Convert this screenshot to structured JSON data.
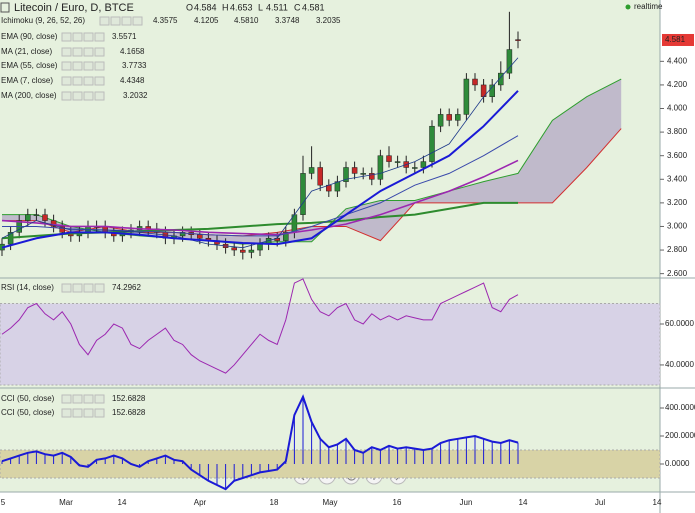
{
  "header": {
    "title": "Litecoin / Euro, D, BTCE",
    "realtime": "realtime",
    "ohlc": [
      {
        "label": "O",
        "value": 4.584
      },
      {
        "label": "H",
        "value": 4.653
      },
      {
        "label": "L",
        "value": 4.511
      },
      {
        "label": "C",
        "value": 4.581
      }
    ]
  },
  "legend": [
    {
      "name": "Ichimoku (9, 26, 52, 26)",
      "values": [
        "4.3575",
        "4.1205",
        "4.5810",
        "3.3748",
        "3.2035"
      ],
      "colors": [
        "#1e88e5",
        "#d32f2f",
        "#2e9e2e",
        "#1b5e20",
        "#c62828"
      ]
    },
    {
      "name": "EMA (90, close)",
      "values": [
        "3.5571"
      ],
      "colors": [
        "#9c27b0"
      ]
    },
    {
      "name": "MA (21, close)",
      "values": [
        "4.1658"
      ],
      "colors": [
        "#1a1ad6"
      ]
    },
    {
      "name": "EMA (55, close)",
      "values": [
        "3.7733"
      ],
      "colors": [
        "#3949ab"
      ]
    },
    {
      "name": "EMA (7, close)",
      "values": [
        "4.4348"
      ],
      "colors": [
        "#1e3a8a"
      ]
    },
    {
      "name": "MA (200, close)",
      "values": [
        "3.2032"
      ],
      "colors": [
        "#2e8b2e"
      ]
    }
  ],
  "price": {
    "ylim": [
      2.58,
      4.92
    ],
    "yticks": [
      {
        "value": 2.6,
        "label": "2.600"
      },
      {
        "value": 2.8,
        "label": "2.800"
      },
      {
        "value": 3.0,
        "label": "3.000"
      },
      {
        "value": 3.2,
        "label": "3.200"
      },
      {
        "value": 3.4,
        "label": "3.400"
      },
      {
        "value": 3.6,
        "label": "3.600"
      },
      {
        "value": 3.8,
        "label": "3.800"
      },
      {
        "value": 4.0,
        "label": "4.000"
      },
      {
        "value": 4.2,
        "label": "4.200"
      },
      {
        "value": 4.4,
        "label": "4.400"
      }
    ],
    "open": [
      2.8,
      2.85,
      2.95,
      3.05,
      3.1,
      3.1,
      3.05,
      3.0,
      2.95,
      2.92,
      2.95,
      3.0,
      3.0,
      2.95,
      2.92,
      2.95,
      2.97,
      3.0,
      2.98,
      2.95,
      2.9,
      2.92,
      2.95,
      2.93,
      2.9,
      2.88,
      2.85,
      2.82,
      2.8,
      2.78,
      2.8,
      2.85,
      2.9,
      2.88,
      2.95,
      3.1,
      3.45,
      3.5,
      3.35,
      3.3,
      3.38,
      3.5,
      3.45,
      3.45,
      3.4,
      3.6,
      3.55,
      3.55,
      3.5,
      3.5,
      3.55,
      3.85,
      3.95,
      3.9,
      3.95,
      4.25,
      4.2,
      4.1,
      4.2,
      4.3,
      4.584
    ],
    "high": [
      2.9,
      3.0,
      3.1,
      3.15,
      3.15,
      3.15,
      3.1,
      3.05,
      3.0,
      3.0,
      3.05,
      3.05,
      3.05,
      3.0,
      3.0,
      3.02,
      3.05,
      3.05,
      3.03,
      3.0,
      2.97,
      3.0,
      3.0,
      2.98,
      2.95,
      2.93,
      2.9,
      2.87,
      2.85,
      2.85,
      2.9,
      2.95,
      2.95,
      3.0,
      3.15,
      3.6,
      3.68,
      3.55,
      3.4,
      3.43,
      3.55,
      3.55,
      3.5,
      3.5,
      3.65,
      3.68,
      3.6,
      3.6,
      3.55,
      3.6,
      3.9,
      4.0,
      4.0,
      4.0,
      4.3,
      4.3,
      4.25,
      4.25,
      4.4,
      4.82,
      4.653
    ],
    "low": [
      2.75,
      2.8,
      2.9,
      3.0,
      3.05,
      3.0,
      2.95,
      2.9,
      2.87,
      2.87,
      2.9,
      2.95,
      2.9,
      2.87,
      2.87,
      2.9,
      2.92,
      2.93,
      2.9,
      2.85,
      2.85,
      2.87,
      2.88,
      2.85,
      2.83,
      2.8,
      2.77,
      2.75,
      2.72,
      2.73,
      2.75,
      2.8,
      2.83,
      2.83,
      2.9,
      3.05,
      3.4,
      3.3,
      3.25,
      3.25,
      3.33,
      3.4,
      3.4,
      3.35,
      3.35,
      3.5,
      3.5,
      3.45,
      3.45,
      3.45,
      3.5,
      3.8,
      3.85,
      3.85,
      3.9,
      4.15,
      4.05,
      4.05,
      4.15,
      4.25,
      4.511
    ],
    "close": [
      2.85,
      2.95,
      3.05,
      3.1,
      3.1,
      3.05,
      3.0,
      2.95,
      2.92,
      2.95,
      3.0,
      3.0,
      2.95,
      2.92,
      2.95,
      2.97,
      3.0,
      2.98,
      2.95,
      2.9,
      2.92,
      2.95,
      2.93,
      2.9,
      2.88,
      2.85,
      2.82,
      2.8,
      2.78,
      2.8,
      2.85,
      2.9,
      2.88,
      2.95,
      3.1,
      3.45,
      3.5,
      3.35,
      3.3,
      3.38,
      3.5,
      3.45,
      3.45,
      3.4,
      3.6,
      3.55,
      3.55,
      3.5,
      3.5,
      3.55,
      3.85,
      3.95,
      3.9,
      3.95,
      4.25,
      4.2,
      4.1,
      4.2,
      4.3,
      4.5,
      4.581
    ],
    "line_x": [
      0,
      4,
      8,
      12,
      16,
      20,
      24,
      28,
      32,
      36,
      40,
      44,
      48,
      52,
      56,
      60
    ],
    "lines": [
      {
        "name": "MA (200, close)",
        "color": "#2e8b2e",
        "width": 2,
        "values": [
          2.9,
          2.92,
          2.94,
          2.95,
          2.96,
          2.97,
          2.98,
          3.0,
          3.02,
          3.03,
          3.05,
          3.08,
          3.1,
          3.15,
          3.2,
          3.2
        ]
      },
      {
        "name": "EMA (90, close)",
        "color": "#9c27b0",
        "width": 1.6,
        "values": [
          3.05,
          3.03,
          3.0,
          3.0,
          2.98,
          2.97,
          2.95,
          2.94,
          2.93,
          2.97,
          3.02,
          3.1,
          3.2,
          3.3,
          3.42,
          3.56
        ]
      },
      {
        "name": "EMA (55, close)",
        "color": "#3949ab",
        "width": 1,
        "values": [
          3.0,
          3.0,
          2.98,
          2.97,
          2.96,
          2.95,
          2.93,
          2.92,
          2.92,
          3.0,
          3.1,
          3.2,
          3.35,
          3.45,
          3.6,
          3.77
        ]
      },
      {
        "name": "EMA (7, close)",
        "color": "#1e3a8a",
        "width": 0.8,
        "values": [
          2.9,
          3.05,
          2.97,
          2.97,
          2.95,
          2.92,
          2.85,
          2.82,
          2.9,
          3.3,
          3.4,
          3.45,
          3.55,
          3.7,
          4.1,
          4.43
        ]
      },
      {
        "name": "MA (21, close)",
        "color": "#1a1ad6",
        "width": 2,
        "values": [
          2.82,
          2.9,
          2.95,
          2.95,
          2.93,
          2.9,
          2.88,
          2.86,
          2.85,
          2.9,
          3.1,
          3.3,
          3.45,
          3.6,
          3.85,
          4.15
        ]
      }
    ],
    "cloud_x": [
      0,
      4,
      8,
      12,
      16,
      20,
      24,
      28,
      32,
      36,
      40,
      44,
      48,
      52,
      56,
      60,
      64,
      68,
      72
    ],
    "cloud_a": [
      3.1,
      3.1,
      3.0,
      2.95,
      2.92,
      2.9,
      2.88,
      2.85,
      2.87,
      2.87,
      3.15,
      3.22,
      3.22,
      3.3,
      3.38,
      3.45,
      3.9,
      4.1,
      4.25
    ],
    "cloud_b": [
      3.05,
      3.05,
      2.95,
      3.0,
      2.95,
      2.95,
      2.93,
      2.92,
      2.95,
      3.0,
      3.0,
      2.88,
      3.2,
      3.2,
      3.2,
      3.2,
      3.2,
      3.5,
      3.83
    ]
  },
  "rsi": {
    "name": "RSI (14, close)",
    "value": "74.2962",
    "ylim": [
      30.2,
      81.5
    ],
    "band": [
      30,
      70
    ],
    "yticks": [
      {
        "value": 40,
        "label": "40.0000"
      },
      {
        "value": 60,
        "label": "60.0000"
      }
    ],
    "values": [
      55,
      58,
      62,
      68,
      70,
      65,
      62,
      66,
      60,
      50,
      45,
      52,
      55,
      60,
      58,
      50,
      48,
      52,
      55,
      58,
      52,
      50,
      45,
      42,
      40,
      38,
      36,
      40,
      45,
      50,
      55,
      52,
      50,
      62,
      80,
      82,
      72,
      66,
      64,
      68,
      70,
      62,
      60,
      65,
      62,
      64,
      62,
      64,
      63,
      62,
      62,
      70,
      72,
      74,
      76,
      78,
      80,
      68,
      66,
      72,
      74.3
    ]
  },
  "cci": {
    "names": [
      "CCI (50, close)",
      "CCI (50, close)"
    ],
    "value": "152.6828",
    "ylim": [
      -185.7,
      528.6
    ],
    "band": [
      -100,
      100
    ],
    "yticks": [
      {
        "value": 0,
        "label": "0.0000"
      },
      {
        "value": 200,
        "label": "200.0000"
      },
      {
        "value": 400,
        "label": "400.0000"
      }
    ],
    "values": [
      20,
      40,
      60,
      80,
      90,
      70,
      60,
      80,
      50,
      -10,
      -20,
      30,
      40,
      60,
      40,
      0,
      -20,
      20,
      40,
      60,
      30,
      20,
      -40,
      -80,
      -120,
      -150,
      -180,
      -120,
      -100,
      -80,
      -60,
      -50,
      -40,
      20,
      350,
      480,
      300,
      180,
      120,
      140,
      180,
      100,
      80,
      120,
      100,
      130,
      110,
      120,
      110,
      100,
      110,
      150,
      170,
      180,
      190,
      200,
      180,
      160,
      150,
      170,
      152.7
    ]
  },
  "x_labels": [
    "5",
    "Mar",
    "14",
    "Apr",
    "18",
    "May",
    "16",
    "Jun",
    "14",
    "Jul",
    "14"
  ]
}
